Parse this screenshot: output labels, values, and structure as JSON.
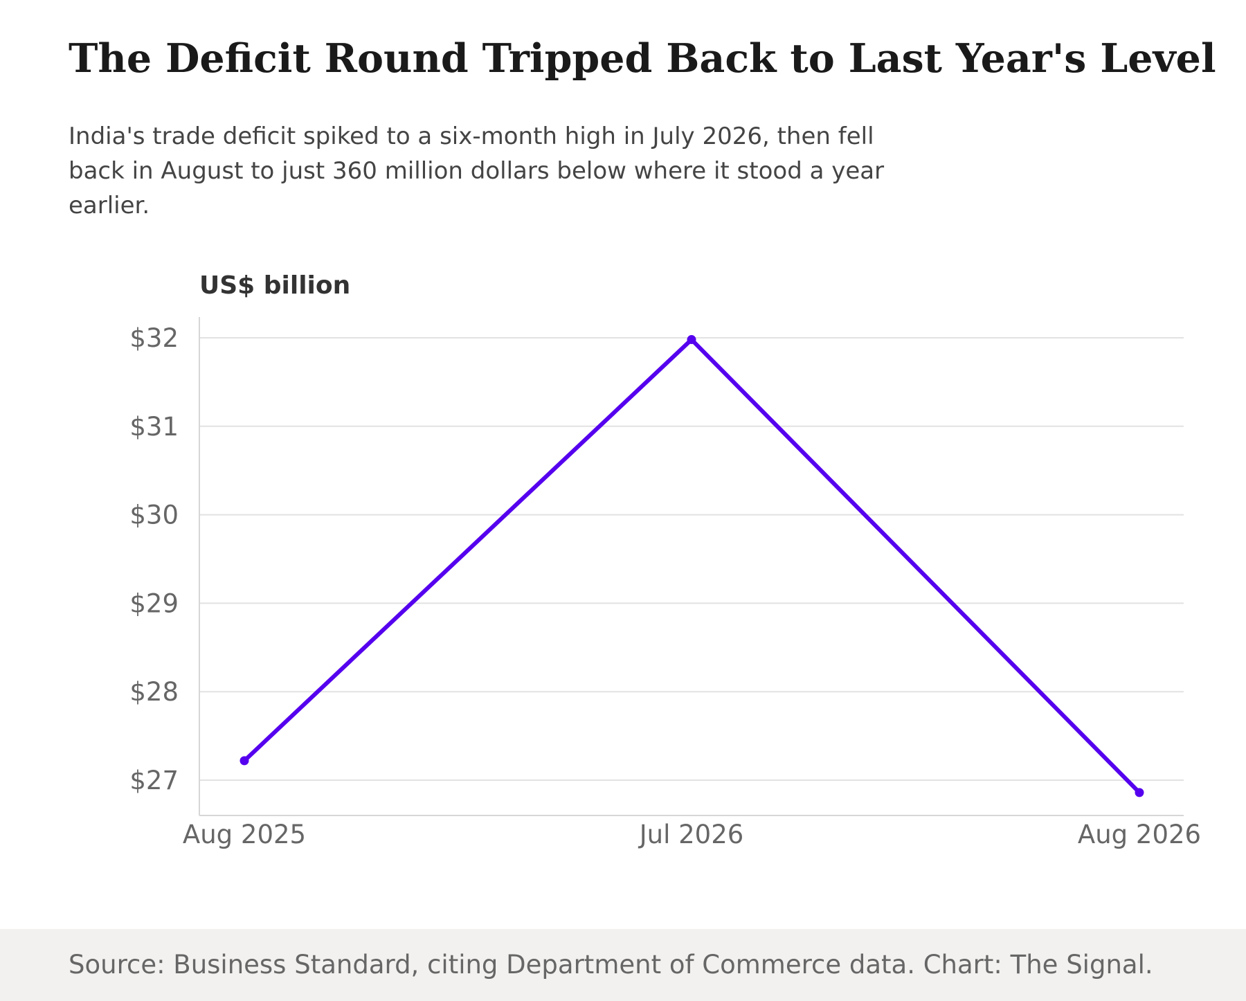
{
  "title": "The Deficit Round Tripped Back to Last Year's Level",
  "subtitle": "India's trade deficit spiked to a six-month high in July 2026, then fell back in August to just 360 million dollars below where it stood a year earlier.",
  "source": "Source: Business Standard, citing Department of Commerce data. Chart: The Signal.",
  "colors": {
    "line": "#5500ee",
    "background": "#ffffff",
    "footer_background": "#f2f1ef"
  },
  "chart_data": {
    "type": "line",
    "title": "The Deficit Round Tripped Back to Last Year's Level",
    "subtitle": "India's trade deficit spiked to a six-month high in July 2026, then fell back in August to just 360 million dollars below where it stood a year earlier.",
    "ylabel": "US$ billion",
    "xlabel": "",
    "x": [
      "2025-08",
      "2026-07",
      "2026-08"
    ],
    "x_tick_labels": [
      "Aug 2025",
      "Jul 2026",
      "Aug 2026"
    ],
    "y_ticks": [
      27,
      28,
      29,
      30,
      31,
      32
    ],
    "y_tick_labels": [
      "$27",
      "$28",
      "$29",
      "$30",
      "$31",
      "$32"
    ],
    "ylim": [
      26.6,
      32.25
    ],
    "grid": true,
    "legend": "none",
    "series": [
      {
        "values": [
          27.22,
          31.98,
          26.86
        ],
        "color": "#5500ee",
        "markers": true
      }
    ]
  }
}
